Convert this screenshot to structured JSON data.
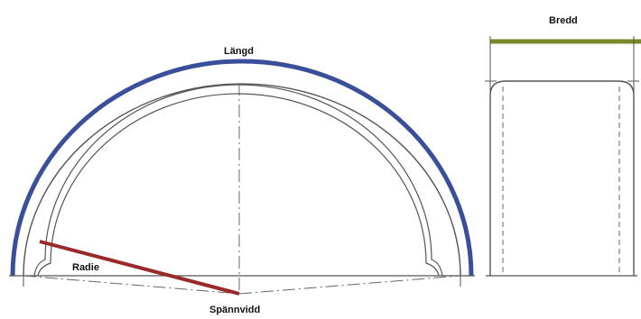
{
  "labels": {
    "length": "Längd",
    "radius": "Radie",
    "span": "Spännvidd",
    "width": "Bredd"
  },
  "colors": {
    "length_arc": "#3a4f9a",
    "radius_line": "#9a2a2a",
    "width_bar": "#7a8a2a",
    "outline": "#555555",
    "dash": "#666666"
  }
}
